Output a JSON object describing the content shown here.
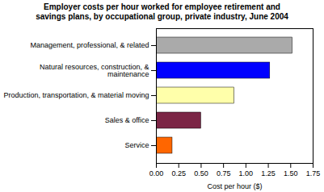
{
  "chart_data": {
    "type": "bar",
    "orientation": "horizontal",
    "title": "Employer costs per hour worked for employee retirement and\nsavings plans, by occupational group, private industry, June 2004",
    "categories": [
      "Service",
      "Sales & office",
      "Production, transportation, & material moving",
      "Natural resources, construction, &\nmaintenance",
      "Management, professional, & related"
    ],
    "values": [
      0.18,
      0.5,
      0.87,
      1.27,
      1.52
    ],
    "colors": [
      "#FF6600",
      "#7B2545",
      "#FFFFAA",
      "#0000FF",
      "#AAAAAA"
    ],
    "xlabel": "Cost per hour ($)",
    "xlim": [
      0,
      1.75
    ],
    "xticks": [
      {
        "value": 0,
        "label": "0.00"
      },
      {
        "value": 0.25,
        "label": "0.25"
      },
      {
        "value": 0.5,
        "label": "0.50"
      },
      {
        "value": 0.75,
        "label": "0.75"
      },
      {
        "value": 1,
        "label": "1.00"
      },
      {
        "value": 1.25,
        "label": "1.25"
      },
      {
        "value": 1.5,
        "label": "1.50"
      },
      {
        "value": 1.75,
        "label": "1.75"
      }
    ]
  }
}
